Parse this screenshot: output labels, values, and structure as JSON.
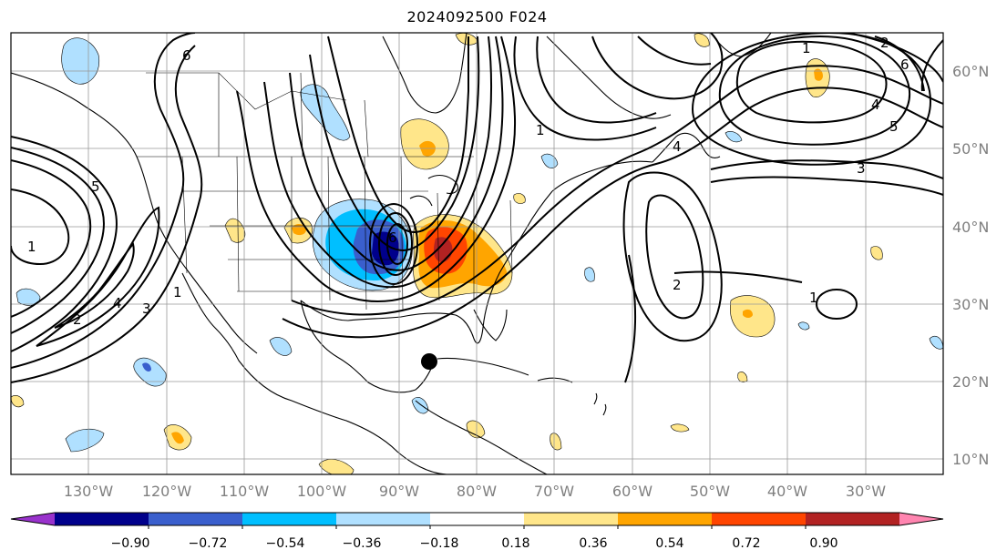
{
  "title": "2024092500 F024",
  "lat_labels": [
    "60°N",
    "50°N",
    "40°N",
    "30°N",
    "20°N",
    "10°N"
  ],
  "lon_labels": [
    "130°W",
    "120°W",
    "110°W",
    "100°W",
    "90°W",
    "80°W",
    "70°W",
    "60°W",
    "50°W",
    "40°W",
    "30°W"
  ],
  "colorbar": {
    "ticks": [
      "−0.90",
      "−0.72",
      "−0.54",
      "−0.36",
      "−0.18",
      "0.18",
      "0.36",
      "0.54",
      "0.72",
      "0.90"
    ],
    "colors": [
      "#9932cc",
      "#00008b",
      "#3a5fcd",
      "#00bfff",
      "#b0e0ff",
      "#ffffff",
      "#ffe68a",
      "#ffa500",
      "#ff4500",
      "#b22222",
      "#ff85b0"
    ]
  },
  "contour_labels": [
    "1",
    "2",
    "3",
    "4",
    "5",
    "6"
  ],
  "storm_marker": "storm-center"
}
